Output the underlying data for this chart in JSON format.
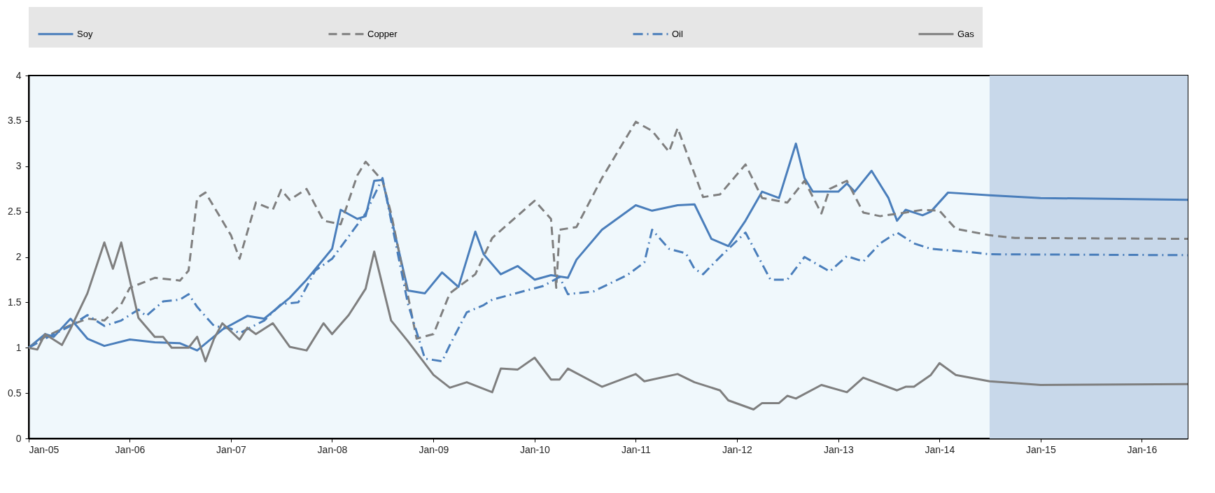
{
  "chart_data": {
    "type": "line",
    "legend": "top",
    "grid": false,
    "xlim": [
      "2005-01-01",
      "2016-06-15"
    ],
    "xticks": [
      {
        "value": "2005-01",
        "label": "Jan-05"
      },
      {
        "value": "2006-01",
        "label": "Jan-06"
      },
      {
        "value": "2007-01",
        "label": "Jan-07"
      },
      {
        "value": "2008-01",
        "label": "Jan-08"
      },
      {
        "value": "2009-01",
        "label": "Jan-09"
      },
      {
        "value": "2010-01",
        "label": "Jan-10"
      },
      {
        "value": "2011-01",
        "label": "Jan-11"
      },
      {
        "value": "2012-01",
        "label": "Jan-12"
      },
      {
        "value": "2013-01",
        "label": "Jan-13"
      },
      {
        "value": "2014-01",
        "label": "Jan-14"
      },
      {
        "value": "2015-01",
        "label": "Jan-15"
      },
      {
        "value": "2016-01",
        "label": "Jan-16"
      }
    ],
    "ylim": [
      0,
      4
    ],
    "yticks": [
      0,
      0.5,
      1,
      1.5,
      2,
      2.5,
      3,
      3.5,
      4
    ],
    "bands": [
      {
        "axis": "x",
        "from": "2014-07",
        "to": "2016-06-15",
        "color": "#c8d8ea"
      }
    ],
    "series": [
      {
        "name": "Soy",
        "color": "#4a7ebb",
        "line_style": "solid",
        "x": [
          "2005-01",
          "2005-03",
          "2005-04",
          "2005-06",
          "2005-08",
          "2005-10",
          "2006-01",
          "2006-04",
          "2006-07",
          "2006-09",
          "2006-12",
          "2007-03",
          "2007-05",
          "2007-08",
          "2007-10",
          "2008-01",
          "2008-02",
          "2008-04",
          "2008-05",
          "2008-06",
          "2008-07",
          "2008-10",
          "2008-12",
          "2009-02",
          "2009-04",
          "2009-06",
          "2009-07",
          "2009-09",
          "2009-11",
          "2010-01",
          "2010-03",
          "2010-05",
          "2010-06",
          "2010-09",
          "2011-01",
          "2011-03",
          "2011-06",
          "2011-08",
          "2011-10",
          "2011-12",
          "2012-02",
          "2012-04",
          "2012-06",
          "2012-08",
          "2012-09",
          "2012-10",
          "2013-01",
          "2013-02",
          "2013-03",
          "2013-05",
          "2013-07",
          "2013-08",
          "2013-09",
          "2013-11",
          "2013-12",
          "2014-02",
          "2014-07",
          "2015-01",
          "2016-06-15"
        ],
        "values": [
          1.0,
          1.15,
          1.12,
          1.32,
          1.1,
          1.02,
          1.09,
          1.06,
          1.05,
          0.97,
          1.2,
          1.35,
          1.32,
          1.55,
          1.75,
          2.09,
          2.52,
          2.42,
          2.45,
          2.84,
          2.85,
          1.63,
          1.6,
          1.83,
          1.67,
          2.28,
          2.03,
          1.81,
          1.9,
          1.75,
          1.8,
          1.77,
          1.97,
          2.3,
          2.57,
          2.51,
          2.57,
          2.58,
          2.2,
          2.12,
          2.4,
          2.72,
          2.65,
          3.25,
          2.87,
          2.72,
          2.72,
          2.81,
          2.72,
          2.95,
          2.65,
          2.4,
          2.52,
          2.46,
          2.5,
          2.71,
          2.68,
          2.65,
          2.63
        ]
      },
      {
        "name": "Copper",
        "color": "#7f7f7f",
        "line_style": "dashed",
        "x": [
          "2005-01",
          "2005-03",
          "2005-06",
          "2005-08",
          "2005-10",
          "2005-12",
          "2006-01",
          "2006-04",
          "2006-07",
          "2006-08",
          "2006-09",
          "2006-10",
          "2007-01",
          "2007-02",
          "2007-04",
          "2007-06",
          "2007-07",
          "2007-08",
          "2007-10",
          "2007-12",
          "2008-02",
          "2008-04",
          "2008-05",
          "2008-07",
          "2008-08",
          "2008-10",
          "2008-11",
          "2009-01",
          "2009-03",
          "2009-06",
          "2009-08",
          "2010-01",
          "2010-03",
          "2010-03-20",
          "2010-04",
          "2010-06",
          "2010-09",
          "2011-01",
          "2011-03",
          "2011-05",
          "2011-06",
          "2011-09",
          "2011-11",
          "2012-02",
          "2012-04",
          "2012-07",
          "2012-09",
          "2012-11",
          "2012-12",
          "2013-02",
          "2013-04",
          "2013-06",
          "2013-09",
          "2013-11",
          "2014-01",
          "2014-03",
          "2014-07",
          "2014-10",
          "2016-06-15"
        ],
        "values": [
          1.0,
          1.12,
          1.25,
          1.32,
          1.3,
          1.48,
          1.66,
          1.77,
          1.74,
          1.85,
          2.65,
          2.71,
          2.24,
          1.98,
          2.6,
          2.52,
          2.74,
          2.63,
          2.75,
          2.4,
          2.36,
          2.9,
          3.05,
          2.84,
          2.48,
          1.57,
          1.1,
          1.15,
          1.6,
          1.81,
          2.21,
          2.62,
          2.42,
          1.66,
          2.3,
          2.33,
          2.87,
          3.49,
          3.39,
          3.16,
          3.42,
          2.66,
          2.69,
          3.02,
          2.65,
          2.6,
          2.84,
          2.48,
          2.75,
          2.84,
          2.49,
          2.45,
          2.49,
          2.52,
          2.51,
          2.31,
          2.24,
          2.21,
          2.2
        ]
      },
      {
        "name": "Oil",
        "color": "#4a7ebb",
        "line_style": "dashdot",
        "x": [
          "2005-01",
          "2005-03",
          "2005-06",
          "2005-08",
          "2005-10",
          "2005-12",
          "2006-02",
          "2006-03",
          "2006-05",
          "2006-07",
          "2006-08",
          "2006-09",
          "2006-11",
          "2007-01",
          "2007-02",
          "2007-05",
          "2007-07",
          "2007-09",
          "2007-11",
          "2008-01",
          "2008-05",
          "2008-07",
          "2008-10",
          "2008-12",
          "2009-02",
          "2009-03",
          "2009-05",
          "2009-07",
          "2009-08",
          "2009-12",
          "2010-02",
          "2010-04",
          "2010-05",
          "2010-08",
          "2010-10",
          "2010-12",
          "2011-02",
          "2011-03",
          "2011-05",
          "2011-07",
          "2011-08",
          "2011-09",
          "2011-11",
          "2012-02",
          "2012-05",
          "2012-07",
          "2012-09",
          "2012-12",
          "2013-02",
          "2013-04",
          "2013-06",
          "2013-08",
          "2013-10",
          "2013-12",
          "2014-04",
          "2014-07",
          "2016-06-15"
        ],
        "values": [
          1.0,
          1.1,
          1.24,
          1.36,
          1.24,
          1.3,
          1.42,
          1.35,
          1.51,
          1.53,
          1.59,
          1.45,
          1.24,
          1.21,
          1.16,
          1.3,
          1.48,
          1.5,
          1.85,
          1.98,
          2.48,
          2.87,
          1.48,
          0.88,
          0.85,
          1.03,
          1.39,
          1.47,
          1.53,
          1.63,
          1.68,
          1.78,
          1.59,
          1.62,
          1.71,
          1.8,
          1.94,
          2.3,
          2.09,
          2.04,
          1.87,
          1.81,
          2.0,
          2.27,
          1.75,
          1.75,
          2.0,
          1.84,
          2.01,
          1.95,
          2.15,
          2.27,
          2.15,
          2.09,
          2.06,
          2.03,
          2.02
        ]
      },
      {
        "name": "Gas",
        "color": "#7f7f7f",
        "line_style": "solid",
        "x": [
          "2005-01",
          "2005-02",
          "2005-03",
          "2005-05",
          "2005-06",
          "2005-08",
          "2005-10",
          "2005-11",
          "2005-12",
          "2006-02",
          "2006-04",
          "2006-05",
          "2006-06",
          "2006-08",
          "2006-09",
          "2006-10",
          "2006-11",
          "2006-12",
          "2007-02",
          "2007-03",
          "2007-04",
          "2007-06",
          "2007-08",
          "2007-10",
          "2007-12",
          "2008-01",
          "2008-03",
          "2008-05",
          "2008-06",
          "2008-08",
          "2008-10",
          "2009-01",
          "2009-03",
          "2009-05",
          "2009-08",
          "2009-09",
          "2009-11",
          "2010-01",
          "2010-03",
          "2010-04",
          "2010-05",
          "2010-09",
          "2011-01",
          "2011-02",
          "2011-06",
          "2011-08",
          "2011-11",
          "2011-12",
          "2012-03",
          "2012-04",
          "2012-06",
          "2012-07",
          "2012-08",
          "2012-11",
          "2013-02",
          "2013-04",
          "2013-08",
          "2013-09",
          "2013-10",
          "2013-12",
          "2014-01",
          "2014-03",
          "2014-07",
          "2015-01",
          "2016-06-15"
        ],
        "values": [
          1.0,
          0.98,
          1.15,
          1.03,
          1.21,
          1.6,
          2.16,
          1.87,
          2.16,
          1.33,
          1.12,
          1.12,
          1.0,
          1.0,
          1.12,
          0.85,
          1.1,
          1.27,
          1.09,
          1.22,
          1.15,
          1.27,
          1.01,
          0.97,
          1.27,
          1.15,
          1.36,
          1.65,
          2.06,
          1.3,
          1.07,
          0.7,
          0.56,
          0.62,
          0.51,
          0.77,
          0.76,
          0.89,
          0.65,
          0.65,
          0.77,
          0.57,
          0.71,
          0.63,
          0.71,
          0.62,
          0.53,
          0.42,
          0.32,
          0.39,
          0.39,
          0.47,
          0.44,
          0.59,
          0.51,
          0.67,
          0.53,
          0.57,
          0.57,
          0.7,
          0.83,
          0.7,
          0.63,
          0.59,
          0.6
        ]
      }
    ]
  }
}
